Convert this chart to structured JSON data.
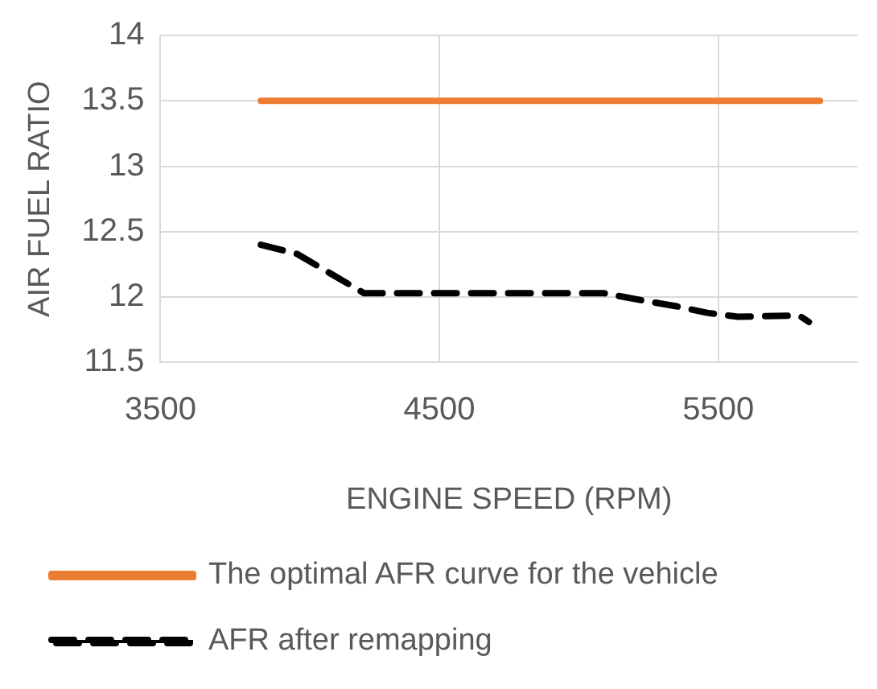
{
  "chart_data": {
    "type": "line",
    "xlabel": "ENGINE SPEED (RPM)",
    "ylabel": "AIR FUEL RATIO",
    "xlim": [
      3500,
      6000
    ],
    "xticks": [
      3500,
      4500,
      5500
    ],
    "ylim": [
      11.5,
      14
    ],
    "yticks": [
      11.5,
      12,
      12.5,
      13,
      13.5,
      14
    ],
    "grid": true,
    "legend": "bottom",
    "marker": "none",
    "series": [
      {
        "name": "The optimal AFR curve for the vehicle",
        "color": "#ed7d31",
        "line_style": "solid",
        "x": [
          3860,
          5865
        ],
        "values": [
          13.5,
          13.5
        ]
      },
      {
        "name": "AFR after remapping",
        "color": "#000000",
        "line_style": "dashed",
        "x": [
          3860,
          3990,
          4190,
          4230,
          4700,
          5090,
          5240,
          5350,
          5460,
          5570,
          5790,
          5825
        ],
        "values": [
          12.4,
          12.33,
          12.08,
          12.03,
          12.03,
          12.03,
          11.97,
          11.93,
          11.88,
          11.85,
          11.86,
          11.81
        ]
      }
    ]
  }
}
